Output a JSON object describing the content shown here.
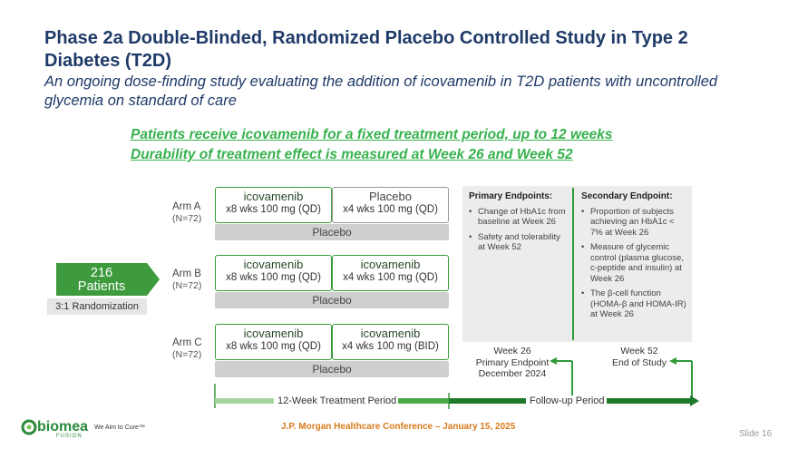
{
  "title": "Phase 2a Double-Blinded, Randomized Placebo Controlled Study in Type 2 Diabetes (T2D)",
  "subtitle": "An ongoing dose-finding study evaluating the addition of icovamenib in T2D patients with uncontrolled glycemia on standard of care",
  "highlights": [
    "Patients receive icovamenib for a fixed treatment period, up to 12 weeks",
    "Durability of treatment effect is measured at Week 26 and Week 52"
  ],
  "patients": {
    "count": "216",
    "label": "Patients",
    "randomization": "3:1 Randomization"
  },
  "arms": [
    {
      "name": "Arm A",
      "n": "(N=72)",
      "first": {
        "drug": "icovamenib",
        "dose": "x8 wks 100 mg (QD)"
      },
      "second": {
        "drug": "Placebo",
        "dose": "x4 wks 100 mg (QD)"
      },
      "placebo": "Placebo"
    },
    {
      "name": "Arm B",
      "n": "(N=72)",
      "first": {
        "drug": "icovamenib",
        "dose": "x8 wks 100 mg (QD)"
      },
      "second": {
        "drug": "icovamenib",
        "dose": "x4 wks 100 mg (QD)"
      },
      "placebo": "Placebo"
    },
    {
      "name": "Arm C",
      "n": "(N=72)",
      "first": {
        "drug": "icovamenib",
        "dose": "x8 wks 100 mg (QD)"
      },
      "second": {
        "drug": "icovamenib",
        "dose": "x4 wks 100 mg (BID)"
      },
      "placebo": "Placebo"
    }
  ],
  "primary_endpoints": {
    "heading": "Primary Endpoints:",
    "items": [
      "Change of HbA1c from baseline at Week 26",
      "Safety and tolerability at Week 52"
    ]
  },
  "secondary_endpoint": {
    "heading": "Secondary Endpoint:",
    "items": [
      "Proportion of subjects achieving an HbA1c < 7% at Week 26",
      "Measure of glycemic control (plasma glucose, c-peptide and insulin) at Week 26",
      "The β-cell function (HOMA-β and HOMA-IR) at Week 26"
    ]
  },
  "week26": {
    "line1": "Week 26",
    "line2": "Primary Endpoint",
    "line3": "December 2024"
  },
  "week52": {
    "line1": "Week 52",
    "line2": "End of Study"
  },
  "timeline": {
    "treatment": "12-Week Treatment Period",
    "followup": "Follow-up Period"
  },
  "footer": {
    "conference": "J.P. Morgan Healthcare Conference – January 15, 2025",
    "slide": "Slide 16",
    "logo": "biomea",
    "logo_sub": "FUSION",
    "tagline": "We Aim to Cure™"
  },
  "colors": {
    "title": "#1f3a68",
    "accent_green": "#37b24d",
    "dark_green": "#2f9b3a",
    "orange": "#d97a1a"
  }
}
